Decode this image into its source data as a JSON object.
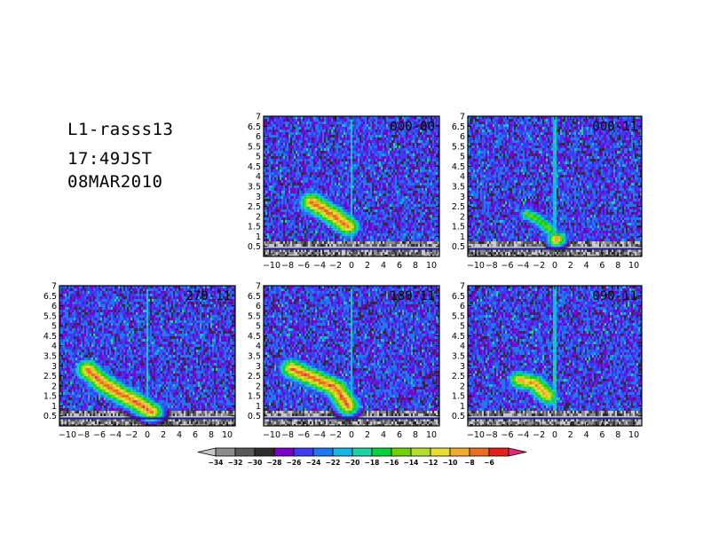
{
  "header": {
    "title": "L1-rasss13",
    "time": "17:49JST",
    "date": "08MAR2010"
  },
  "chart_data": [
    {
      "type": "heatmap",
      "panel_label": "000-00",
      "x_ticks": [
        -10,
        -8,
        -6,
        -4,
        -2,
        0,
        2,
        4,
        6,
        8,
        10
      ],
      "y_ticks": [
        0.5,
        1,
        1.5,
        2,
        2.5,
        3,
        3.5,
        4,
        4.5,
        5,
        5.5,
        6,
        6.5,
        7
      ],
      "xlim": [
        -11,
        11
      ],
      "ylim": [
        0,
        7
      ],
      "features": [
        {
          "kind": "streak",
          "points": [
            [
              -5,
              2.7
            ],
            [
              -2,
              1.95
            ],
            [
              -0.5,
              1.5
            ]
          ],
          "peak": -6
        }
      ]
    },
    {
      "type": "heatmap",
      "panel_label": "000-11",
      "x_ticks": [
        -10,
        -8,
        -6,
        -4,
        -2,
        0,
        2,
        4,
        6,
        8,
        10
      ],
      "y_ticks": [
        0.5,
        1,
        1.5,
        2,
        2.5,
        3,
        3.5,
        4,
        4.5,
        5,
        5.5,
        6,
        6.5,
        7
      ],
      "xlim": [
        -11,
        11
      ],
      "ylim": [
        0,
        7
      ],
      "features": [
        {
          "kind": "streak",
          "points": [
            [
              -3.5,
              2.1
            ],
            [
              -2,
              1.8
            ],
            [
              -0.5,
              1.3
            ]
          ],
          "peak": -14
        },
        {
          "kind": "blob",
          "center": [
            0.2,
            0.85
          ],
          "peak": -6
        }
      ]
    },
    {
      "type": "heatmap",
      "panel_label": "270-11",
      "x_ticks": [
        -10,
        -8,
        -6,
        -4,
        -2,
        0,
        2,
        4,
        6,
        8,
        10
      ],
      "y_ticks": [
        0.5,
        1,
        1.5,
        2,
        2.5,
        3,
        3.5,
        4,
        4.5,
        5,
        5.5,
        6,
        6.5,
        7
      ],
      "xlim": [
        -11,
        11
      ],
      "ylim": [
        0,
        7
      ],
      "features": [
        {
          "kind": "streak",
          "points": [
            [
              -7.5,
              2.8
            ],
            [
              -5.5,
              2.1
            ],
            [
              -3,
              1.5
            ],
            [
              -1.5,
              1.2
            ],
            [
              0.5,
              0.7
            ]
          ],
          "peak": -6
        }
      ]
    },
    {
      "type": "heatmap",
      "panel_label": "180-11",
      "x_ticks": [
        -10,
        -8,
        -6,
        -4,
        -2,
        0,
        2,
        4,
        6,
        8,
        10
      ],
      "y_ticks": [
        0.5,
        1,
        1.5,
        2,
        2.5,
        3,
        3.5,
        4,
        4.5,
        5,
        5.5,
        6,
        6.5,
        7
      ],
      "xlim": [
        -11,
        11
      ],
      "ylim": [
        0,
        7
      ],
      "features": [
        {
          "kind": "streak",
          "points": [
            [
              -7.5,
              2.85
            ],
            [
              -5,
              2.4
            ],
            [
              -2,
              1.9
            ],
            [
              -0.5,
              1.0
            ]
          ],
          "peak": -6
        }
      ]
    },
    {
      "type": "heatmap",
      "panel_label": "090-11",
      "x_ticks": [
        -10,
        -8,
        -6,
        -4,
        -2,
        0,
        2,
        4,
        6,
        8,
        10
      ],
      "y_ticks": [
        0.5,
        1,
        1.5,
        2,
        2.5,
        3,
        3.5,
        4,
        4.5,
        5,
        5.5,
        6,
        6.5,
        7
      ],
      "xlim": [
        -11,
        11
      ],
      "ylim": [
        0,
        7
      ],
      "features": [
        {
          "kind": "streak",
          "points": [
            [
              -4.5,
              2.3
            ],
            [
              -2.5,
              2.1
            ],
            [
              -1,
              1.5
            ]
          ],
          "peak": -8
        },
        {
          "kind": "blob",
          "center": [
            -0.2,
            1.2
          ],
          "peak": -16
        }
      ]
    }
  ],
  "colorbar": {
    "levels": [
      -34,
      -32,
      -30,
      -28,
      -26,
      -24,
      -22,
      -20,
      -18,
      -16,
      -14,
      -12,
      -10,
      -8,
      -6
    ],
    "colors": [
      "#8c8c8c",
      "#5a5a5a",
      "#2d2d2d",
      "#7a00c8",
      "#3c3cf5",
      "#1e78f0",
      "#14b4e6",
      "#1ed2a5",
      "#00d23c",
      "#6ed200",
      "#b4dc28",
      "#e6dc32",
      "#f0aa2d",
      "#eb6e1e",
      "#e61e1e",
      "#e6287a"
    ],
    "under_color": "#c8c8c8",
    "over_color": "#e6287a"
  }
}
